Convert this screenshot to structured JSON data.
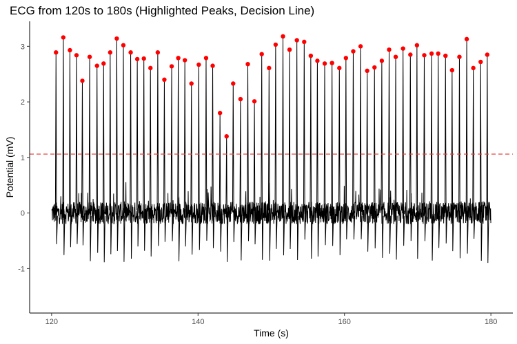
{
  "chart_data": {
    "type": "line",
    "title": "ECG from 120s to 180s (Highlighted Peaks, Decision Line)",
    "xlabel": "Time (s)",
    "ylabel": "Potential (mV)",
    "xlim": [
      117,
      183
    ],
    "ylim": [
      -1.8,
      3.45
    ],
    "x_ticks": [
      120,
      140,
      160,
      180
    ],
    "y_ticks": [
      -1,
      0,
      1,
      2,
      3
    ],
    "grid": false,
    "legend": "none",
    "decision_threshold": 1.06,
    "colors": {
      "signal": "#000000",
      "peaks": "#ff0000",
      "decision_line": "#e8413c"
    },
    "series": [
      {
        "type": "line",
        "x_range": [
          120.0,
          180.0
        ],
        "noise_amplitude": 0.2,
        "baseline_spikes_max": 0.4,
        "trough_min": -1.2
      },
      {
        "type": "scatter",
        "x": [
          120.6,
          121.6,
          122.5,
          123.4,
          124.2,
          125.2,
          126.2,
          127.1,
          128.0,
          128.9,
          129.8,
          130.8,
          131.7,
          132.6,
          133.5,
          134.5,
          135.4,
          136.4,
          137.3,
          138.2,
          139.1,
          140.1,
          141.1,
          142.0,
          143.0,
          143.9,
          144.8,
          145.8,
          146.8,
          147.7,
          148.7,
          149.7,
          150.6,
          151.6,
          152.5,
          153.5,
          154.5,
          155.4,
          156.3,
          157.3,
          158.3,
          159.3,
          160.2,
          161.2,
          162.2,
          163.1,
          164.1,
          165.1,
          166.1,
          167.0,
          168.0,
          169.0,
          169.9,
          170.9,
          171.9,
          172.8,
          173.8,
          174.7,
          175.7,
          176.7,
          177.6,
          178.6,
          179.5
        ],
        "y": [
          2.89,
          3.16,
          2.93,
          2.84,
          2.38,
          2.81,
          2.65,
          2.69,
          2.89,
          3.14,
          3.02,
          2.89,
          2.77,
          2.78,
          2.61,
          2.89,
          2.4,
          2.64,
          2.79,
          2.75,
          2.33,
          2.67,
          2.79,
          2.65,
          1.8,
          1.38,
          2.33,
          2.05,
          2.68,
          2.01,
          2.86,
          2.61,
          3.03,
          3.18,
          2.94,
          3.11,
          3.08,
          2.83,
          2.74,
          2.69,
          2.7,
          2.61,
          2.79,
          2.91,
          3.0,
          2.56,
          2.62,
          2.74,
          2.94,
          2.81,
          2.96,
          2.85,
          3.02,
          2.84,
          2.87,
          2.87,
          2.83,
          2.57,
          2.81,
          3.13,
          2.61,
          2.72,
          2.85
        ]
      }
    ]
  }
}
